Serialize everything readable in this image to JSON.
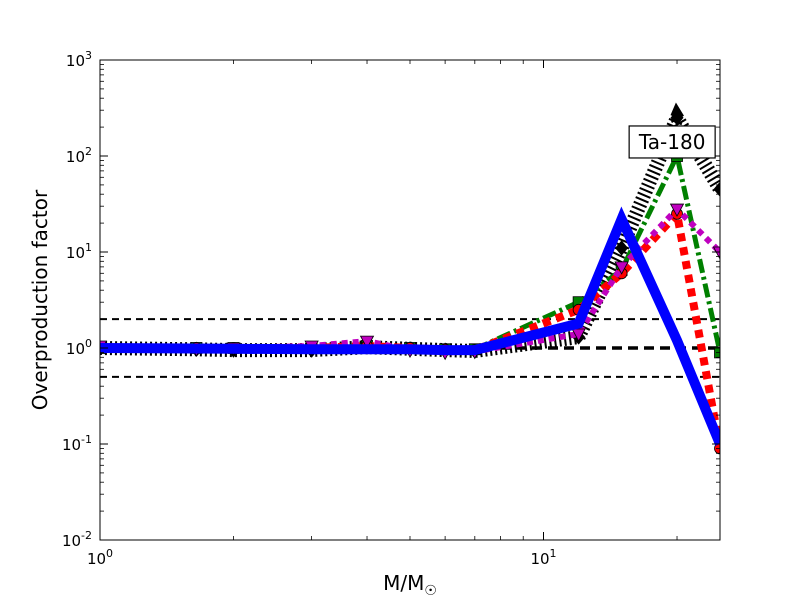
{
  "chart_data": {
    "type": "line",
    "xscale": "log",
    "yscale": "log",
    "xlim": [
      1,
      25
    ],
    "ylim": [
      0.01,
      1000
    ],
    "grid": false,
    "xlabel": "M/M",
    "xlabel_sub": "☉",
    "ylabel": "Overproduction factor",
    "x_ticks": [
      {
        "base": "10",
        "exp": "0",
        "value": 1
      },
      {
        "base": "10",
        "exp": "1",
        "value": 10
      }
    ],
    "y_ticks": [
      {
        "base": "10",
        "exp": "-2",
        "value": 0.01
      },
      {
        "base": "10",
        "exp": "-1",
        "value": 0.1
      },
      {
        "base": "10",
        "exp": "0",
        "value": 1
      },
      {
        "base": "10",
        "exp": "1",
        "value": 10
      },
      {
        "base": "10",
        "exp": "2",
        "value": 100
      },
      {
        "base": "10",
        "exp": "3",
        "value": 1000
      }
    ],
    "annotation": {
      "text": "Ta-180",
      "x": 19.5,
      "y": 140
    },
    "reference_lines": [
      {
        "y": 2,
        "style": "dashed",
        "color": "#000000",
        "weight": "thin"
      },
      {
        "y": 0.5,
        "style": "dashed",
        "color": "#000000",
        "weight": "thin"
      },
      {
        "y": 1,
        "style": "dashed",
        "color": "#000000",
        "weight": "thick"
      }
    ],
    "series": [
      {
        "color": "#000000",
        "style": "dotted-hatch",
        "marker": "diamond",
        "x": [
          1,
          1.65,
          2,
          3,
          4,
          5,
          6,
          7,
          12,
          15,
          20,
          25
        ],
        "y": [
          1.0,
          0.97,
          0.95,
          0.95,
          1.02,
          0.98,
          0.95,
          0.93,
          1.3,
          11,
          250,
          45
        ]
      },
      {
        "color": "#008000",
        "style": "dashdot",
        "marker": "square",
        "x": [
          1,
          1.65,
          2,
          3,
          4,
          5,
          6,
          7,
          12,
          15,
          20,
          25
        ],
        "y": [
          1.0,
          1.0,
          1.0,
          1.0,
          1.05,
          1.0,
          0.97,
          0.97,
          3.0,
          6.5,
          100,
          0.9
        ]
      },
      {
        "color": "#ff0000",
        "style": "dotted-thick",
        "marker": "circle",
        "x": [
          1,
          1.65,
          2,
          3,
          4,
          5,
          6,
          7,
          12,
          15,
          20,
          25
        ],
        "y": [
          1.0,
          1.0,
          1.0,
          1.0,
          1.05,
          1.0,
          0.96,
          0.95,
          2.5,
          6.0,
          25,
          0.09
        ]
      },
      {
        "color": "#bf00bf",
        "style": "dotted",
        "marker": "triangle-down",
        "x": [
          1,
          1.65,
          2,
          3,
          4,
          5,
          6,
          7,
          12,
          15,
          20,
          25
        ],
        "y": [
          1.05,
          0.98,
          1.0,
          1.05,
          1.18,
          0.95,
          0.9,
          0.92,
          1.4,
          7.0,
          28,
          10
        ]
      },
      {
        "color": "#0000ff",
        "style": "solid",
        "marker": "none",
        "x": [
          1,
          2,
          3,
          4,
          5,
          6,
          7,
          12,
          15,
          20,
          25
        ],
        "y": [
          1.0,
          0.98,
          0.97,
          0.97,
          0.97,
          0.95,
          0.95,
          1.8,
          22,
          1.2,
          0.1
        ]
      }
    ]
  }
}
